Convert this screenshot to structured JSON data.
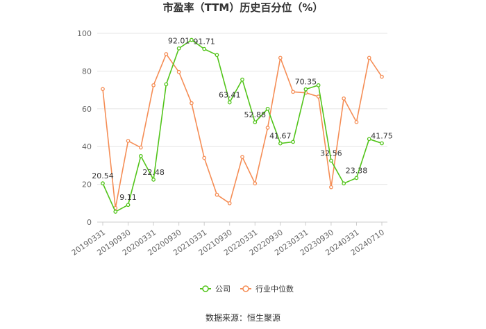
{
  "chart_data": {
    "type": "line",
    "title": "市盈率（TTM）历史百分位（%）",
    "source": "数据来源：恒生聚源",
    "ylim": [
      0,
      100
    ],
    "yticks": [
      0,
      20,
      40,
      60,
      80,
      100
    ],
    "grid": true,
    "legend_position": "bottom",
    "x_tick_labels": [
      "20190331",
      "20190930",
      "20200331",
      "20200930",
      "20210331",
      "20210930",
      "20220331",
      "20220930",
      "20230331",
      "20230930",
      "20240331",
      "20240710"
    ],
    "x_tick_indices": [
      0,
      2,
      4,
      6,
      8,
      10,
      12,
      14,
      16,
      18,
      20,
      22
    ],
    "series": [
      {
        "name": "公司",
        "color": "#52c41a",
        "values": [
          20.54,
          5.5,
          9.11,
          35.0,
          22.48,
          73.0,
          92.01,
          96.5,
          91.71,
          88.5,
          63.41,
          75.5,
          52.88,
          60.0,
          41.67,
          42.5,
          70.35,
          72.5,
          32.56,
          20.5,
          23.38,
          44.0,
          41.75
        ]
      },
      {
        "name": "行业中位数",
        "color": "#f58d55",
        "values": [
          70.5,
          7.5,
          43.0,
          39.5,
          72.5,
          89.0,
          79.5,
          63.0,
          34.0,
          14.5,
          10.0,
          34.5,
          20.5,
          50.0,
          87.0,
          69.0,
          68.5,
          66.5,
          18.5,
          65.5,
          53.0,
          87.0,
          77.0
        ]
      }
    ],
    "data_labels": [
      {
        "index": 0,
        "text": "20.54"
      },
      {
        "index": 2,
        "text": "9.11"
      },
      {
        "index": 4,
        "text": "22.48"
      },
      {
        "index": 6,
        "text": "92.01"
      },
      {
        "index": 8,
        "text": "91.71"
      },
      {
        "index": 10,
        "text": "63.41"
      },
      {
        "index": 12,
        "text": "52.88"
      },
      {
        "index": 14,
        "text": "41.67"
      },
      {
        "index": 16,
        "text": "70.35"
      },
      {
        "index": 18,
        "text": "32.56"
      },
      {
        "index": 20,
        "text": "23.38"
      },
      {
        "index": 22,
        "text": "41.75"
      }
    ]
  }
}
